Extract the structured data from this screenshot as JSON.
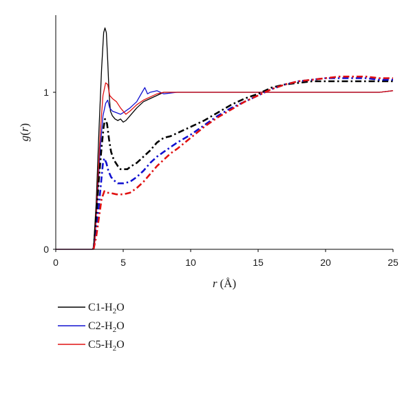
{
  "chart_data": {
    "type": "line",
    "xlim": [
      0,
      25
    ],
    "ylim": [
      0,
      1.5
    ],
    "x_ticks": [
      "0",
      "5",
      "10",
      "15",
      "20",
      "25"
    ],
    "x_tick_values": [
      0,
      5,
      10,
      15,
      20,
      25
    ],
    "y_ticks": [
      "0",
      "1"
    ],
    "y_tick_values": [
      0,
      1
    ],
    "xlabel": {
      "var": "r",
      "unit": "(Å)"
    },
    "ylabel": {
      "func": "g",
      "open": "(",
      "var": "r",
      "close": ")"
    },
    "grid": false,
    "legend_position": "bottom-left",
    "legend": [
      {
        "prefix": "C1-H",
        "sub": "2",
        "suffix": "O",
        "color": "#000000"
      },
      {
        "prefix": "C2-H",
        "sub": "2",
        "suffix": "O",
        "color": "#1010d0"
      },
      {
        "prefix": "C5-H",
        "sub": "2",
        "suffix": "O",
        "color": "#e01010"
      }
    ],
    "series": [
      {
        "color": "#000000",
        "style": "solid",
        "points": [
          [
            0,
            0
          ],
          [
            2.7,
            0
          ],
          [
            2.8,
            0.01
          ],
          [
            3.0,
            0.3
          ],
          [
            3.2,
            0.75
          ],
          [
            3.4,
            1.15
          ],
          [
            3.55,
            1.38
          ],
          [
            3.65,
            1.41
          ],
          [
            3.75,
            1.38
          ],
          [
            3.85,
            1.2
          ],
          [
            3.95,
            1.0
          ],
          [
            4.05,
            0.88
          ],
          [
            4.2,
            0.85
          ],
          [
            4.4,
            0.83
          ],
          [
            4.6,
            0.82
          ],
          [
            4.8,
            0.83
          ],
          [
            5.0,
            0.81
          ],
          [
            5.2,
            0.82
          ],
          [
            5.5,
            0.85
          ],
          [
            6.0,
            0.9
          ],
          [
            6.5,
            0.94
          ],
          [
            7.0,
            0.96
          ],
          [
            7.5,
            0.98
          ],
          [
            8.0,
            1.0
          ],
          [
            9,
            1.0
          ],
          [
            10,
            1.0
          ],
          [
            12,
            1.0
          ],
          [
            14,
            1.0
          ],
          [
            16,
            1.0
          ],
          [
            18,
            1.0
          ],
          [
            20,
            1.0
          ],
          [
            22,
            1.0
          ],
          [
            24,
            1.0
          ],
          [
            25,
            1.01
          ]
        ]
      },
      {
        "color": "#1010d0",
        "style": "solid",
        "points": [
          [
            0,
            0
          ],
          [
            2.8,
            0
          ],
          [
            2.9,
            0.05
          ],
          [
            3.1,
            0.35
          ],
          [
            3.3,
            0.65
          ],
          [
            3.5,
            0.85
          ],
          [
            3.7,
            0.93
          ],
          [
            3.85,
            0.95
          ],
          [
            4.0,
            0.9
          ],
          [
            4.2,
            0.88
          ],
          [
            4.5,
            0.87
          ],
          [
            4.8,
            0.86
          ],
          [
            5.0,
            0.87
          ],
          [
            5.5,
            0.9
          ],
          [
            6.0,
            0.94
          ],
          [
            6.4,
            1.0
          ],
          [
            6.6,
            1.03
          ],
          [
            6.8,
            0.99
          ],
          [
            7.0,
            1.0
          ],
          [
            7.5,
            1.01
          ],
          [
            8.0,
            0.99
          ],
          [
            9,
            1.0
          ],
          [
            10,
            1.0
          ],
          [
            12,
            1.0
          ],
          [
            14,
            1.0
          ],
          [
            16,
            1.0
          ],
          [
            18,
            1.0
          ],
          [
            20,
            1.0
          ],
          [
            22,
            1.0
          ],
          [
            24,
            1.0
          ],
          [
            25,
            1.01
          ]
        ]
      },
      {
        "color": "#e01010",
        "style": "solid",
        "points": [
          [
            0,
            0
          ],
          [
            2.8,
            0
          ],
          [
            2.9,
            0.05
          ],
          [
            3.1,
            0.4
          ],
          [
            3.3,
            0.75
          ],
          [
            3.5,
            0.98
          ],
          [
            3.7,
            1.06
          ],
          [
            3.85,
            1.05
          ],
          [
            4.0,
            0.98
          ],
          [
            4.2,
            0.96
          ],
          [
            4.5,
            0.94
          ],
          [
            4.8,
            0.9
          ],
          [
            5.0,
            0.88
          ],
          [
            5.2,
            0.86
          ],
          [
            5.5,
            0.88
          ],
          [
            6.0,
            0.92
          ],
          [
            6.5,
            0.95
          ],
          [
            7.0,
            0.97
          ],
          [
            7.5,
            0.99
          ],
          [
            8.0,
            1.0
          ],
          [
            9,
            1.0
          ],
          [
            10,
            1.0
          ],
          [
            12,
            1.0
          ],
          [
            14,
            1.0
          ],
          [
            16,
            1.0
          ],
          [
            18,
            1.0
          ],
          [
            20,
            1.0
          ],
          [
            22,
            1.0
          ],
          [
            24,
            1.0
          ],
          [
            25,
            1.01
          ]
        ]
      },
      {
        "color": "#000000",
        "style": "dashdot",
        "points": [
          [
            2.8,
            0
          ],
          [
            3.0,
            0.2
          ],
          [
            3.2,
            0.45
          ],
          [
            3.4,
            0.65
          ],
          [
            3.55,
            0.78
          ],
          [
            3.65,
            0.83
          ],
          [
            3.8,
            0.8
          ],
          [
            3.95,
            0.7
          ],
          [
            4.1,
            0.62
          ],
          [
            4.3,
            0.57
          ],
          [
            4.6,
            0.53
          ],
          [
            4.8,
            0.51
          ],
          [
            5.0,
            0.51
          ],
          [
            5.3,
            0.51
          ],
          [
            5.6,
            0.53
          ],
          [
            6.0,
            0.55
          ],
          [
            6.5,
            0.59
          ],
          [
            7.0,
            0.63
          ],
          [
            7.5,
            0.68
          ],
          [
            8.0,
            0.71
          ],
          [
            8.5,
            0.72
          ],
          [
            9.0,
            0.74
          ],
          [
            10,
            0.78
          ],
          [
            11,
            0.82
          ],
          [
            12,
            0.87
          ],
          [
            13,
            0.92
          ],
          [
            14,
            0.96
          ],
          [
            15,
            0.99
          ],
          [
            16,
            1.03
          ],
          [
            17,
            1.05
          ],
          [
            18,
            1.06
          ],
          [
            19,
            1.07
          ],
          [
            20,
            1.07
          ],
          [
            21,
            1.07
          ],
          [
            22,
            1.07
          ],
          [
            23,
            1.07
          ],
          [
            24,
            1.07
          ],
          [
            25,
            1.07
          ]
        ]
      },
      {
        "color": "#1010d0",
        "style": "dashdot",
        "points": [
          [
            2.8,
            0
          ],
          [
            3.0,
            0.1
          ],
          [
            3.2,
            0.28
          ],
          [
            3.4,
            0.46
          ],
          [
            3.5,
            0.55
          ],
          [
            3.6,
            0.58
          ],
          [
            3.75,
            0.55
          ],
          [
            3.9,
            0.5
          ],
          [
            4.1,
            0.46
          ],
          [
            4.3,
            0.44
          ],
          [
            4.6,
            0.42
          ],
          [
            5.0,
            0.42
          ],
          [
            5.5,
            0.43
          ],
          [
            6.0,
            0.46
          ],
          [
            6.5,
            0.5
          ],
          [
            7.0,
            0.55
          ],
          [
            7.5,
            0.59
          ],
          [
            8.0,
            0.62
          ],
          [
            8.5,
            0.65
          ],
          [
            9.0,
            0.68
          ],
          [
            10,
            0.73
          ],
          [
            11,
            0.79
          ],
          [
            12,
            0.85
          ],
          [
            13,
            0.9
          ],
          [
            14,
            0.94
          ],
          [
            15,
            0.98
          ],
          [
            16,
            1.02
          ],
          [
            17,
            1.05
          ],
          [
            18,
            1.07
          ],
          [
            19,
            1.08
          ],
          [
            20,
            1.09
          ],
          [
            21,
            1.09
          ],
          [
            22,
            1.09
          ],
          [
            23,
            1.09
          ],
          [
            24,
            1.08
          ],
          [
            25,
            1.08
          ]
        ]
      },
      {
        "color": "#e01010",
        "style": "dashdot",
        "points": [
          [
            2.8,
            0
          ],
          [
            3.0,
            0.08
          ],
          [
            3.2,
            0.2
          ],
          [
            3.4,
            0.32
          ],
          [
            3.6,
            0.37
          ],
          [
            3.8,
            0.36
          ],
          [
            4.0,
            0.36
          ],
          [
            4.5,
            0.35
          ],
          [
            5.0,
            0.35
          ],
          [
            5.5,
            0.36
          ],
          [
            6.0,
            0.39
          ],
          [
            6.5,
            0.43
          ],
          [
            7.0,
            0.48
          ],
          [
            7.5,
            0.53
          ],
          [
            8.0,
            0.57
          ],
          [
            8.5,
            0.61
          ],
          [
            9.0,
            0.64
          ],
          [
            10,
            0.71
          ],
          [
            11,
            0.78
          ],
          [
            12,
            0.84
          ],
          [
            13,
            0.89
          ],
          [
            14,
            0.94
          ],
          [
            15,
            0.98
          ],
          [
            16,
            1.02
          ],
          [
            17,
            1.05
          ],
          [
            18,
            1.07
          ],
          [
            19,
            1.08
          ],
          [
            20,
            1.09
          ],
          [
            21,
            1.1
          ],
          [
            22,
            1.1
          ],
          [
            23,
            1.1
          ],
          [
            24,
            1.09
          ],
          [
            25,
            1.09
          ]
        ]
      }
    ]
  }
}
